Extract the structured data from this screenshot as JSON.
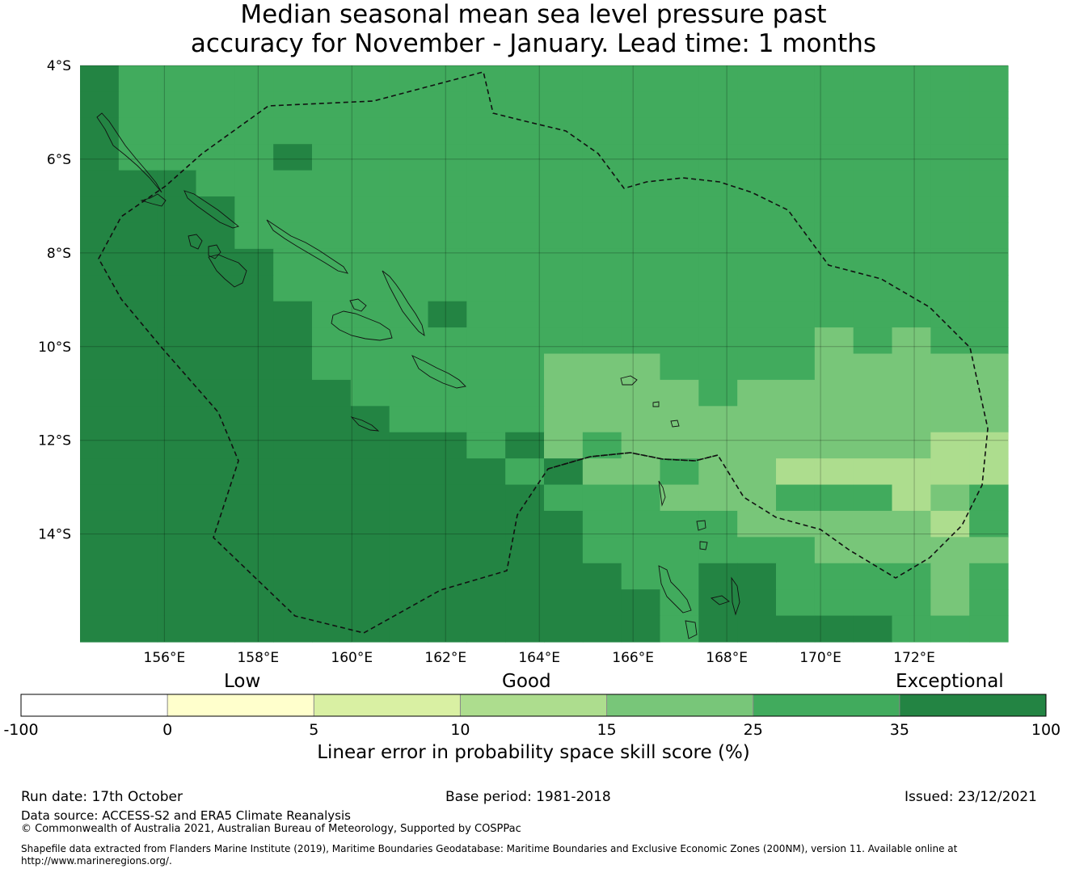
{
  "title": {
    "line1": "Median seasonal mean sea level pressure past",
    "line2": "accuracy for November - January. Lead time: 1 months"
  },
  "map": {
    "lat_labels": [
      "4°S",
      "6°S",
      "8°S",
      "10°S",
      "12°S",
      "14°S"
    ],
    "lon_labels": [
      "156°E",
      "158°E",
      "160°E",
      "162°E",
      "164°E",
      "166°E",
      "168°E",
      "170°E",
      "172°E"
    ],
    "extent": {
      "lon_min": 154.2,
      "lon_max": 174.0,
      "lat_min": -16.3,
      "lat_max": -4.0
    },
    "boundary_style": "dashed",
    "grid": "1-degree cells, 0.7-degree x 0.55-degree rendering approximated",
    "skill_grid_default_class": 5
  },
  "colorbar": {
    "categories": [
      "Low",
      "Good",
      "Exceptional"
    ],
    "ticks": [
      "-100",
      "0",
      "5",
      "10",
      "15",
      "25",
      "35",
      "100"
    ],
    "colors": [
      "#ffffff",
      "#ffffcc",
      "#d9f0a3",
      "#addd8e",
      "#78c679",
      "#41ab5d",
      "#238443"
    ],
    "label": "Linear error in probability space skill score (%)"
  },
  "footer": {
    "run_date": "Run date: 17th October",
    "base_period": "Base period: 1981-2018",
    "issued": "Issued: 23/12/2021",
    "data_source": "Data source: ACCESS-S2 and ERA5 Climate Reanalysis",
    "copyright": "© Commonwealth of Australia 2021, Australian Bureau of Meteorology, Supported by COSPPac",
    "shapefile_line1": "Shapefile data extracted from Flanders Marine Institute (2019), Maritime Boundaries Geodatabase: Maritime Boundaries and Exclusive Economic Zones (200NM), version 11. Available online at",
    "shapefile_line2": "http://www.marineregions.org/."
  }
}
